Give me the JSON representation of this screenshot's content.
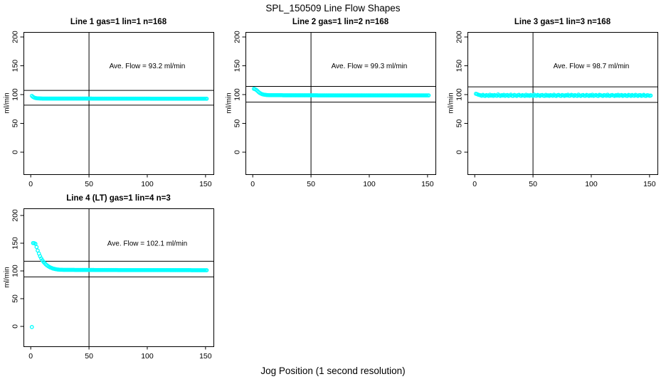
{
  "page": {
    "main_title": "SPL_150509  Line Flow Shapes",
    "x_axis_label": "Jog Position (1 second resolution)"
  },
  "chart_data": {
    "type": "scatter",
    "title": "SPL_150509  Line Flow Shapes",
    "xlabel": "Jog Position (1 second resolution)",
    "ylabel": "ml/min",
    "point_color": "#00FFFF",
    "line_color": "#000000",
    "x_ticks": [
      0,
      50,
      100,
      150
    ],
    "y_ticks": [
      0,
      50,
      100,
      150,
      200
    ],
    "xlim": [
      -6,
      157
    ],
    "ylim": [
      -38,
      209
    ],
    "grid": false,
    "vline_x": 50,
    "x_start": 1,
    "x_step": 1,
    "panels": [
      {
        "title": "Line 1 gas=1 lin=1 n=168",
        "annotation": "Ave. Flow =  93.2  ml/min",
        "ave_flow": 93.2,
        "ref_line_upper": 107.2,
        "ref_line_lower": 81.6,
        "y_runs": [
          97.6,
          95.9,
          94.8,
          94.1,
          93.7,
          93.5,
          93.3,
          93.2,
          93.2,
          [
            93.1,
            43
          ],
          [
            93.0,
            50
          ],
          [
            92.9,
            49
          ]
        ]
      },
      {
        "title": "Line 2 gas=1 lin=2 n=168",
        "annotation": "Ave. Flow =  99.3  ml/min",
        "ave_flow": 99.3,
        "ref_line_upper": 114.2,
        "ref_line_lower": 86.9,
        "y_runs": [
          110.0,
          109.3,
          108.1,
          106.3,
          104.5,
          102.9,
          101.7,
          100.8,
          100.2,
          99.8,
          99.5,
          99.3,
          99.1,
          [
            99.0,
            12
          ],
          [
            98.8,
            30
          ],
          [
            98.7,
            50
          ],
          [
            98.6,
            46
          ]
        ]
      },
      {
        "title": "Line 3 gas=1 lin=3 n=168",
        "annotation": "Ave. Flow =  98.7  ml/min",
        "ave_flow": 98.7,
        "ref_line_upper": 113.5,
        "ref_line_lower": 86.4,
        "y_runs": [
          101.4,
          100.7,
          99.9,
          99.3,
          98.8,
          97.9,
          99.5,
          98.2,
          97.6,
          99.1,
          98.5,
          97.8,
          99.8,
          98.1,
          98.9,
          97.7,
          99.3,
          98.4,
          97.9,
          100.2,
          98.6,
          97.6,
          99.0,
          98.3,
          99.6,
          97.8,
          98.8,
          99.2,
          97.7,
          98.5,
          99.9,
          98.0,
          97.8,
          99.4,
          98.6,
          97.7,
          98.9,
          99.5,
          98.2,
          97.9,
          99.1,
          98.4,
          97.6,
          99.7,
          98.1,
          98.8,
          97.8,
          99.2,
          98.5,
          97.7,
          100.0,
          98.3,
          97.9,
          99.4,
          98.7,
          97.6,
          98.9,
          99.3,
          98.0,
          97.8,
          99.6,
          98.2,
          98.8,
          97.7,
          99.1,
          98.5,
          97.9,
          99.8,
          98.3,
          97.6,
          98.9,
          99.4,
          98.1,
          97.8,
          99.2,
          98.6,
          97.7,
          99.0,
          98.4,
          99.7,
          97.9,
          98.2,
          99.5,
          98.8,
          97.6,
          99.1,
          98.3,
          97.8,
          99.9,
          98.5,
          97.7,
          98.8,
          99.2,
          98.0,
          97.9,
          99.4,
          98.6,
          97.6,
          99.0,
          98.2,
          99.8,
          97.8,
          98.5,
          99.3,
          98.1,
          97.7,
          99.5,
          98.9,
          98.3,
          97.6,
          99.1,
          98.6,
          97.9,
          99.7,
          98.2,
          97.8,
          98.8,
          99.2,
          98.4,
          97.7,
          99.0,
          98.1,
          99.6,
          97.9,
          98.7,
          99.3,
          97.6,
          98.5,
          99.1,
          98.0,
          97.8,
          99.4,
          98.8,
          97.7,
          99.2,
          98.3,
          97.9,
          99.6,
          98.6,
          97.6,
          98.9,
          99.1,
          97.8,
          98.4,
          99.5,
          98.0,
          97.7,
          99.0,
          98.7,
          97.9,
          98.3
        ]
      },
      {
        "title": "Line 4 (LT) gas=1 lin=4 n=3",
        "annotation": "Ave. Flow =  102.1  ml/min",
        "ave_flow": 102.1,
        "ref_line_upper": 117.4,
        "ref_line_lower": 89.3,
        "y_runs": [
          -1.2,
          150.3,
          150.0,
          148.8,
          143.1,
          136.8,
          131.3,
          126.6,
          122.6,
          119.2,
          116.3,
          113.8,
          111.7,
          110.0,
          108.5,
          107.2,
          106.1,
          105.2,
          104.4,
          103.8,
          103.3,
          102.9,
          102.6,
          102.4,
          102.2,
          102.1,
          102.0,
          [
            101.9,
            10
          ],
          [
            101.8,
            17
          ],
          [
            101.7,
            20
          ],
          [
            101.6,
            25
          ],
          [
            101.5,
            20
          ],
          [
            101.4,
            18
          ],
          [
            101.3,
            14
          ]
        ]
      }
    ]
  }
}
